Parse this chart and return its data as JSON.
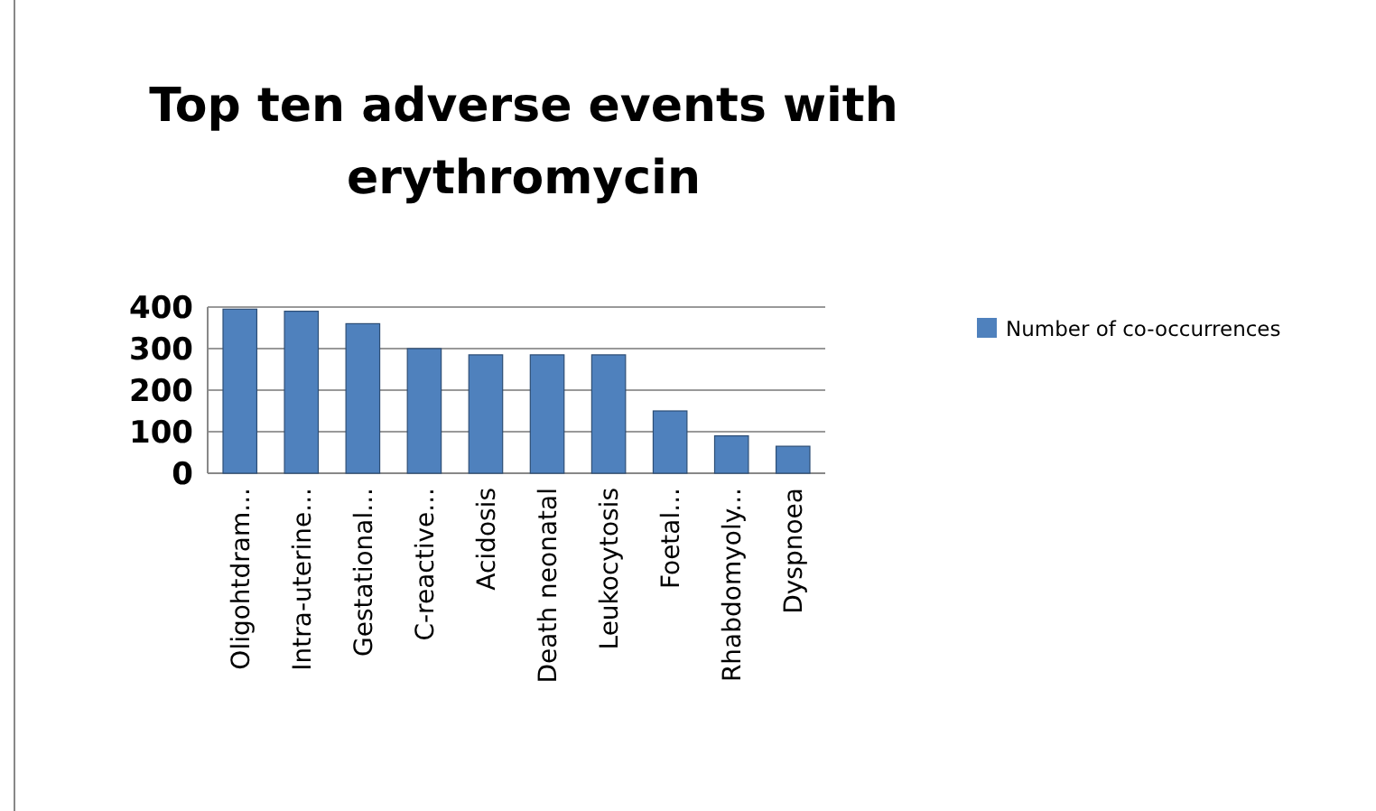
{
  "chart_data": {
    "type": "bar",
    "title": "Top ten adverse events with erythromycin",
    "categories": [
      "Oligohtdram...",
      "Intra-uterine...",
      "Gestational...",
      "C-reactive...",
      "Acidosis",
      "Death neonatal",
      "Leukocytosis",
      "Foetal...",
      "Rhabdomyoly...",
      "Dyspnoea"
    ],
    "series": [
      {
        "name": "Number of co-occurrences",
        "color": "#4f81bd",
        "values": [
          395,
          390,
          360,
          300,
          285,
          285,
          285,
          150,
          90,
          65
        ]
      }
    ],
    "ylim": [
      0,
      400
    ],
    "yticks": [
      0,
      100,
      200,
      300,
      400
    ],
    "grid": "y",
    "legend": "right"
  }
}
